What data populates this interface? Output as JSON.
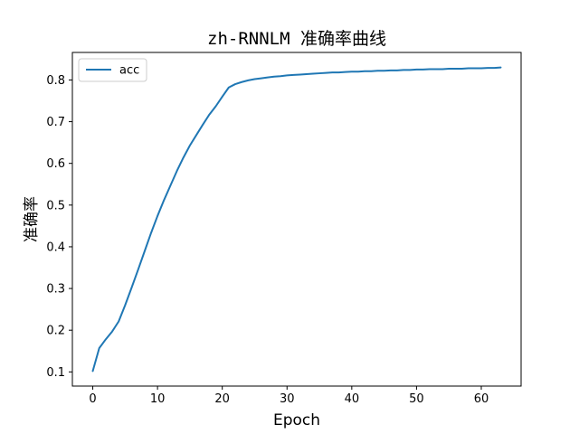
{
  "chart_data": {
    "type": "line",
    "title": "zh-RNNLM 准确率曲线",
    "xlabel": "Epoch",
    "ylabel": "准确率",
    "xlim": [
      -3.15,
      66.15
    ],
    "ylim": [
      0.066,
      0.866
    ],
    "xticks": [
      0,
      10,
      20,
      30,
      40,
      50,
      60
    ],
    "xtick_labels": [
      "0",
      "10",
      "20",
      "30",
      "40",
      "50",
      "60"
    ],
    "yticks": [
      0.1,
      0.2,
      0.3,
      0.4,
      0.5,
      0.6,
      0.7,
      0.8
    ],
    "ytick_labels": [
      "0.1",
      "0.2",
      "0.3",
      "0.4",
      "0.5",
      "0.6",
      "0.7",
      "0.8"
    ],
    "grid": false,
    "legend_position": "top-left",
    "series": [
      {
        "name": "acc",
        "color": "#1f77b4",
        "x": [
          0,
          1,
          2,
          3,
          4,
          5,
          6,
          7,
          8,
          9,
          10,
          11,
          12,
          13,
          14,
          15,
          16,
          17,
          18,
          19,
          20,
          21,
          22,
          23,
          24,
          25,
          26,
          27,
          28,
          29,
          30,
          31,
          32,
          33,
          34,
          35,
          36,
          37,
          38,
          39,
          40,
          41,
          42,
          43,
          44,
          45,
          46,
          47,
          48,
          49,
          50,
          51,
          52,
          53,
          54,
          55,
          56,
          57,
          58,
          59,
          60,
          61,
          62,
          63
        ],
        "y": [
          0.102,
          0.157,
          0.178,
          0.197,
          0.221,
          0.26,
          0.302,
          0.345,
          0.389,
          0.433,
          0.474,
          0.512,
          0.547,
          0.582,
          0.614,
          0.643,
          0.668,
          0.693,
          0.717,
          0.737,
          0.76,
          0.782,
          0.79,
          0.795,
          0.799,
          0.802,
          0.804,
          0.806,
          0.808,
          0.809,
          0.811,
          0.812,
          0.813,
          0.814,
          0.815,
          0.816,
          0.817,
          0.818,
          0.818,
          0.819,
          0.82,
          0.82,
          0.821,
          0.821,
          0.822,
          0.822,
          0.823,
          0.823,
          0.824,
          0.824,
          0.825,
          0.825,
          0.826,
          0.826,
          0.826,
          0.827,
          0.827,
          0.827,
          0.828,
          0.828,
          0.828,
          0.829,
          0.829,
          0.83
        ]
      }
    ]
  }
}
